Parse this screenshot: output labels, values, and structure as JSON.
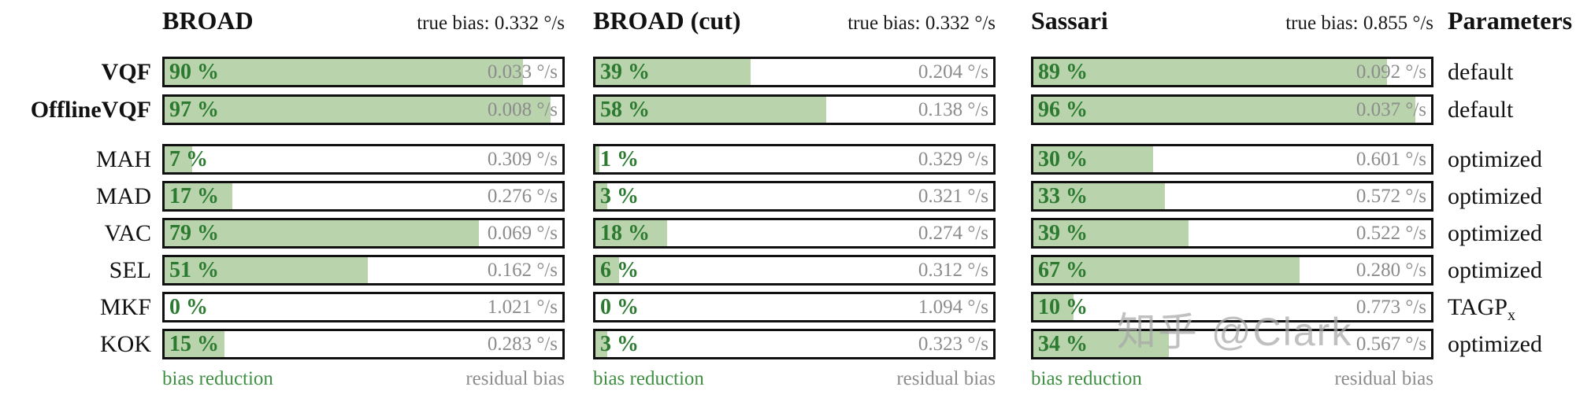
{
  "watermark": "知乎 @Clark",
  "colors": {
    "bar_fill": "#b9d3ad",
    "bar_border": "#101010",
    "pct_green": "#2b7a2f",
    "residual_gray": "#8c8c8c",
    "footer_green": "#3f8f43"
  },
  "params_header": "Parameters",
  "footer": {
    "left": "bias reduction",
    "right": "residual bias"
  },
  "chart_data": {
    "type": "bar",
    "unit": "°/s",
    "rows": [
      {
        "label": "VQF",
        "emphasized": true
      },
      {
        "label": "OfflineVQF",
        "emphasized": true
      },
      {
        "label": "MAH",
        "emphasized": false
      },
      {
        "label": "MAD",
        "emphasized": false
      },
      {
        "label": "VAC",
        "emphasized": false
      },
      {
        "label": "SEL",
        "emphasized": false
      },
      {
        "label": "MKF",
        "emphasized": false
      },
      {
        "label": "KOK",
        "emphasized": false
      }
    ],
    "parameters": [
      {
        "text": "default",
        "sub": ""
      },
      {
        "text": "default",
        "sub": ""
      },
      {
        "text": "optimized",
        "sub": ""
      },
      {
        "text": "optimized",
        "sub": ""
      },
      {
        "text": "optimized",
        "sub": ""
      },
      {
        "text": "optimized",
        "sub": ""
      },
      {
        "text": "TAGP",
        "sub": "x"
      },
      {
        "text": "optimized",
        "sub": ""
      }
    ],
    "columns": [
      {
        "title": "BROAD",
        "true_bias": 0.332,
        "true_bias_label": "true bias: 0.332 °/s",
        "cells": [
          {
            "pct": 90,
            "pct_label": "90 %",
            "residual": 0.033,
            "residual_label": "0.033 °/s"
          },
          {
            "pct": 97,
            "pct_label": "97 %",
            "residual": 0.008,
            "residual_label": "0.008 °/s"
          },
          {
            "pct": 7,
            "pct_label": "7 %",
            "residual": 0.309,
            "residual_label": "0.309 °/s"
          },
          {
            "pct": 17,
            "pct_label": "17 %",
            "residual": 0.276,
            "residual_label": "0.276 °/s"
          },
          {
            "pct": 79,
            "pct_label": "79 %",
            "residual": 0.069,
            "residual_label": "0.069 °/s"
          },
          {
            "pct": 51,
            "pct_label": "51 %",
            "residual": 0.162,
            "residual_label": "0.162 °/s"
          },
          {
            "pct": 0,
            "pct_label": "0 %",
            "residual": 1.021,
            "residual_label": "1.021 °/s"
          },
          {
            "pct": 15,
            "pct_label": "15 %",
            "residual": 0.283,
            "residual_label": "0.283 °/s"
          }
        ]
      },
      {
        "title": "BROAD (cut)",
        "true_bias": 0.332,
        "true_bias_label": "true bias: 0.332 °/s",
        "cells": [
          {
            "pct": 39,
            "pct_label": "39 %",
            "residual": 0.204,
            "residual_label": "0.204 °/s"
          },
          {
            "pct": 58,
            "pct_label": "58 %",
            "residual": 0.138,
            "residual_label": "0.138 °/s"
          },
          {
            "pct": 1,
            "pct_label": "1 %",
            "residual": 0.329,
            "residual_label": "0.329 °/s"
          },
          {
            "pct": 3,
            "pct_label": "3 %",
            "residual": 0.321,
            "residual_label": "0.321 °/s"
          },
          {
            "pct": 18,
            "pct_label": "18 %",
            "residual": 0.274,
            "residual_label": "0.274 °/s"
          },
          {
            "pct": 6,
            "pct_label": "6 %",
            "residual": 0.312,
            "residual_label": "0.312 °/s"
          },
          {
            "pct": 0,
            "pct_label": "0 %",
            "residual": 1.094,
            "residual_label": "1.094 °/s"
          },
          {
            "pct": 3,
            "pct_label": "3 %",
            "residual": 0.323,
            "residual_label": "0.323 °/s"
          }
        ]
      },
      {
        "title": "Sassari",
        "true_bias": 0.855,
        "true_bias_label": "true bias: 0.855 °/s",
        "cells": [
          {
            "pct": 89,
            "pct_label": "89 %",
            "residual": 0.092,
            "residual_label": "0.092 °/s"
          },
          {
            "pct": 96,
            "pct_label": "96 %",
            "residual": 0.037,
            "residual_label": "0.037 °/s"
          },
          {
            "pct": 30,
            "pct_label": "30 %",
            "residual": 0.601,
            "residual_label": "0.601 °/s"
          },
          {
            "pct": 33,
            "pct_label": "33 %",
            "residual": 0.572,
            "residual_label": "0.572 °/s"
          },
          {
            "pct": 39,
            "pct_label": "39 %",
            "residual": 0.522,
            "residual_label": "0.522 °/s"
          },
          {
            "pct": 67,
            "pct_label": "67 %",
            "residual": 0.28,
            "residual_label": "0.280 °/s"
          },
          {
            "pct": 10,
            "pct_label": "10 %",
            "residual": 0.773,
            "residual_label": "0.773 °/s"
          },
          {
            "pct": 34,
            "pct_label": "34 %",
            "residual": 0.567,
            "residual_label": "0.567 °/s"
          }
        ]
      }
    ]
  }
}
